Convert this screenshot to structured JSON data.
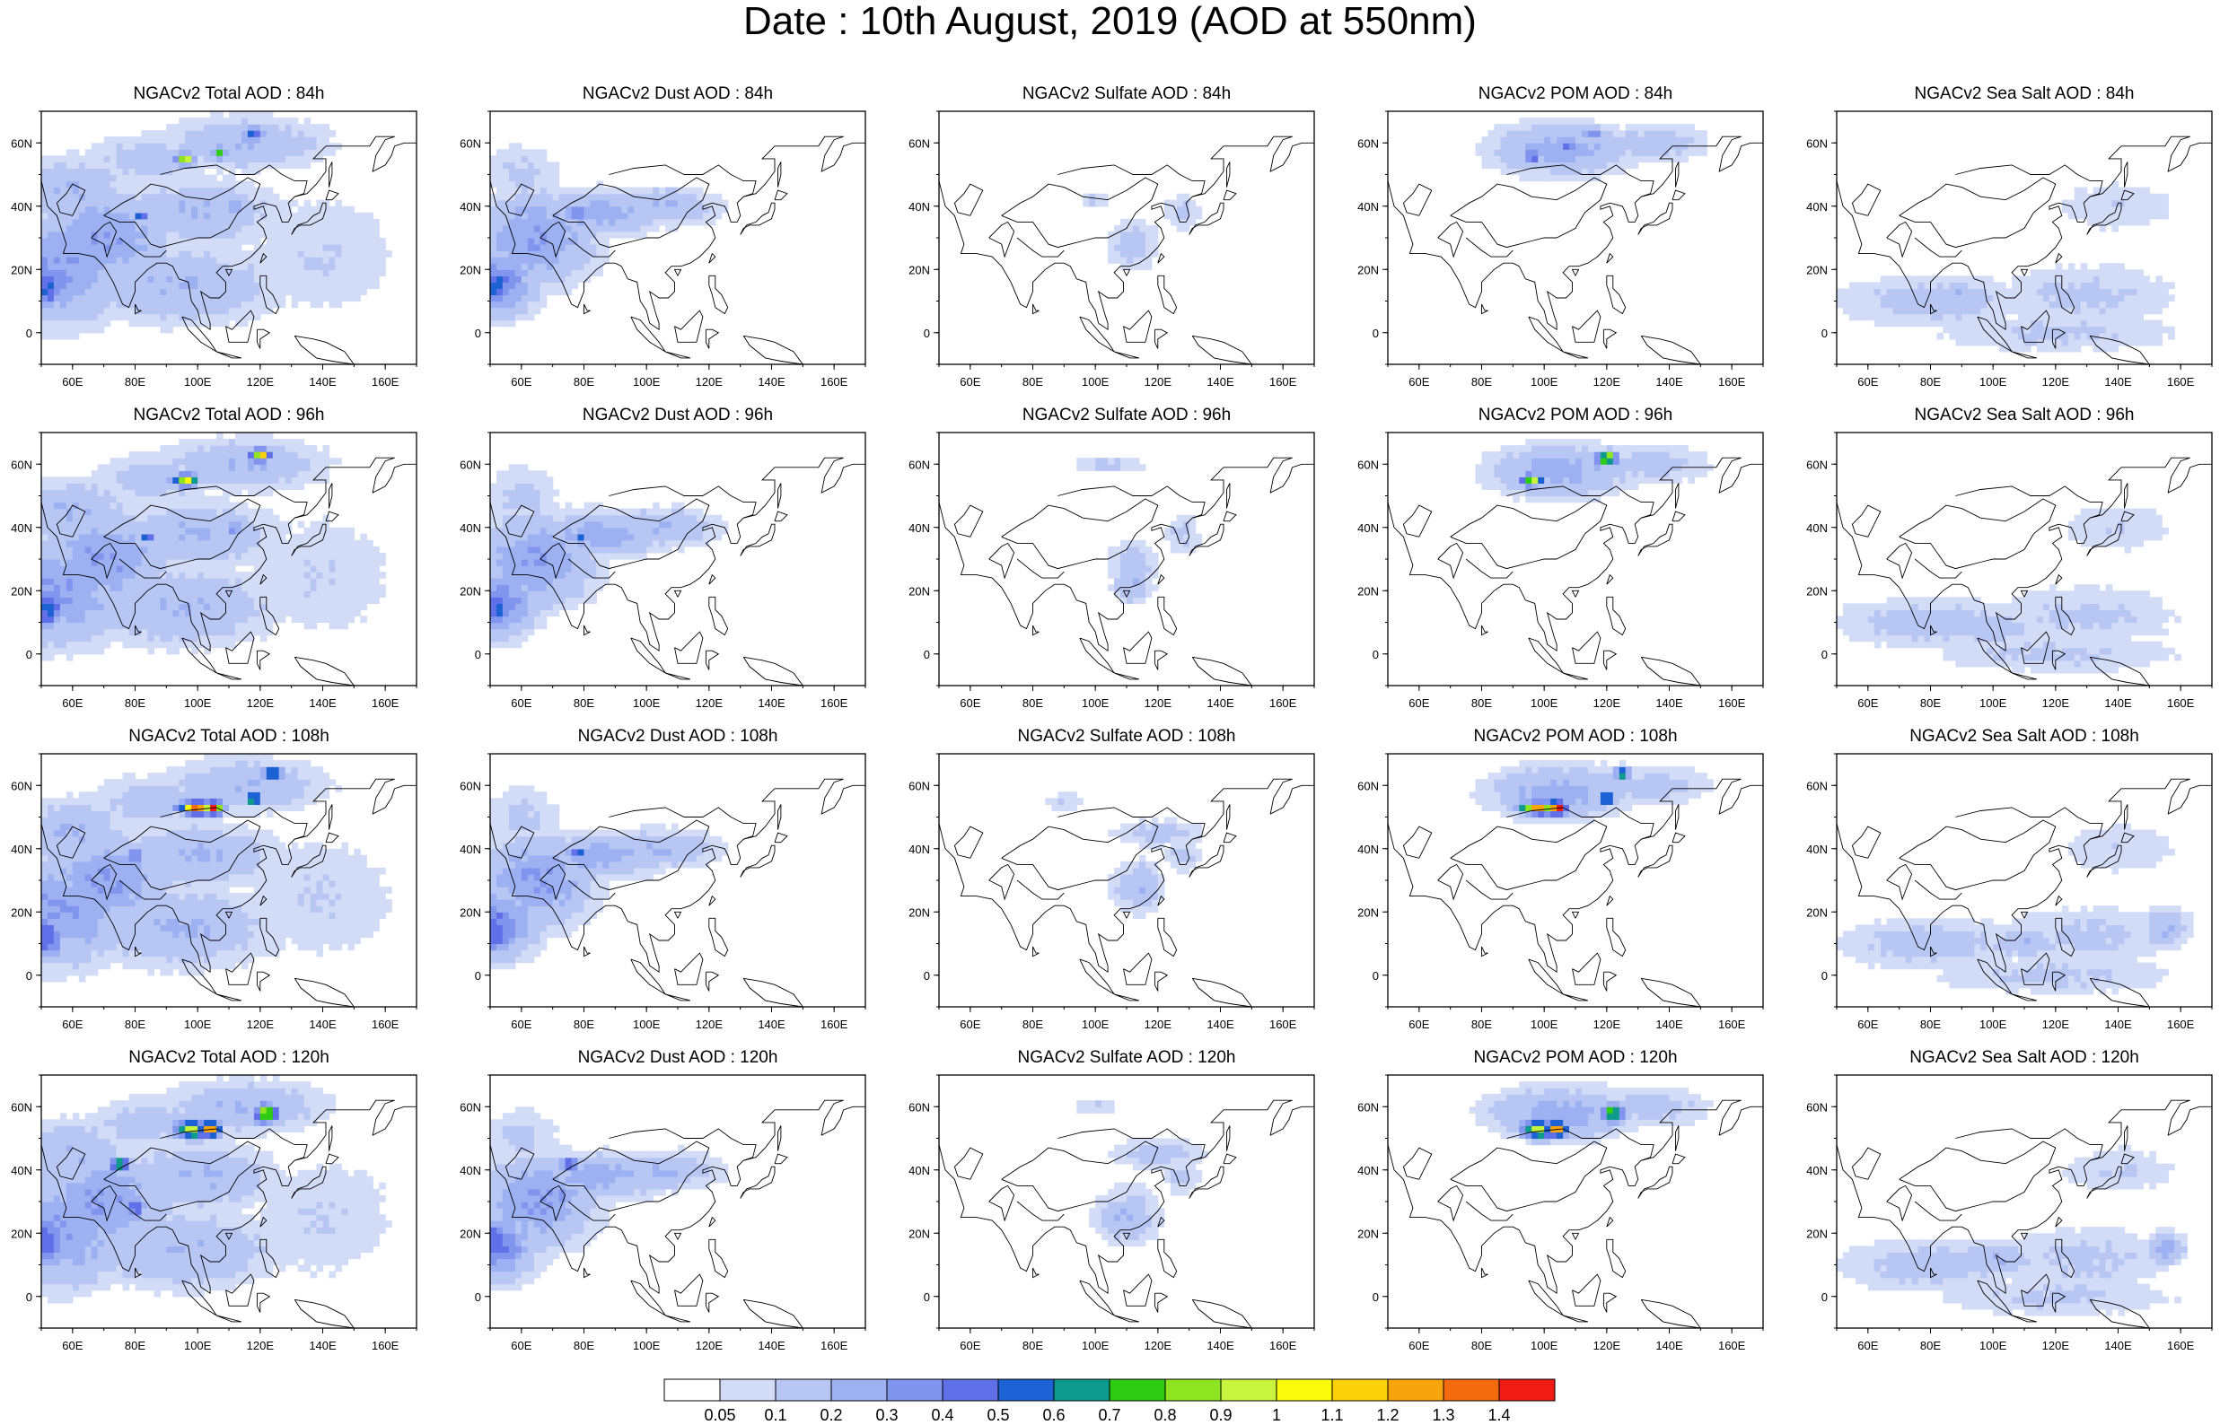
{
  "title": "Date : 10th August, 2019 (AOD at 550nm)",
  "map": {
    "lon_range": [
      50,
      170
    ],
    "lat_range": [
      -10,
      70
    ],
    "lon_ticks": [
      "60E",
      "80E",
      "100E",
      "120E",
      "140E",
      "160E"
    ],
    "lat_ticks": [
      "60N",
      "40N",
      "20N",
      "0"
    ]
  },
  "panels": [
    {
      "title": "NGACv2 Total AOD : 84h",
      "species": "total",
      "hour": 84
    },
    {
      "title": "NGACv2 Dust AOD : 84h",
      "species": "dust",
      "hour": 84
    },
    {
      "title": "NGACv2 Sulfate AOD : 84h",
      "species": "sulfate",
      "hour": 84
    },
    {
      "title": "NGACv2 POM AOD : 84h",
      "species": "pom",
      "hour": 84
    },
    {
      "title": "NGACv2 Sea Salt AOD : 84h",
      "species": "seasalt",
      "hour": 84
    },
    {
      "title": "NGACv2 Total AOD : 96h",
      "species": "total",
      "hour": 96
    },
    {
      "title": "NGACv2 Dust AOD : 96h",
      "species": "dust",
      "hour": 96
    },
    {
      "title": "NGACv2 Sulfate AOD : 96h",
      "species": "sulfate",
      "hour": 96
    },
    {
      "title": "NGACv2 POM AOD : 96h",
      "species": "pom",
      "hour": 96
    },
    {
      "title": "NGACv2 Sea Salt AOD : 96h",
      "species": "seasalt",
      "hour": 96
    },
    {
      "title": "NGACv2 Total AOD : 108h",
      "species": "total",
      "hour": 108
    },
    {
      "title": "NGACv2 Dust AOD : 108h",
      "species": "dust",
      "hour": 108
    },
    {
      "title": "NGACv2 Sulfate AOD : 108h",
      "species": "sulfate",
      "hour": 108
    },
    {
      "title": "NGACv2 POM AOD : 108h",
      "species": "pom",
      "hour": 108
    },
    {
      "title": "NGACv2 Sea Salt AOD : 108h",
      "species": "seasalt",
      "hour": 108
    },
    {
      "title": "NGACv2 Total AOD : 120h",
      "species": "total",
      "hour": 120
    },
    {
      "title": "NGACv2 Dust AOD : 120h",
      "species": "dust",
      "hour": 120
    },
    {
      "title": "NGACv2 Sulfate AOD : 120h",
      "species": "sulfate",
      "hour": 120
    },
    {
      "title": "NGACv2 POM AOD : 120h",
      "species": "pom",
      "hour": 120
    },
    {
      "title": "NGACv2 Sea Salt  AOD : 120h",
      "species": "seasalt",
      "hour": 120
    }
  ],
  "colorbar": {
    "labels": [
      "0.05",
      "0.1",
      "0.2",
      "0.3",
      "0.4",
      "0.5",
      "0.6",
      "0.7",
      "0.8",
      "0.9",
      "1",
      "1.1",
      "1.2",
      "1.3",
      "1.4"
    ],
    "colors": [
      "#ffffff",
      "#d3dcf7",
      "#b8c6f4",
      "#9db0f2",
      "#8295ee",
      "#6070e8",
      "#1d62d5",
      "#0e9a8c",
      "#2ecb13",
      "#8ee421",
      "#c9f43e",
      "#fdfb0c",
      "#fdd10a",
      "#f8a40d",
      "#f36a0f",
      "#ef1b14"
    ]
  },
  "coastline_color": "#000000"
}
